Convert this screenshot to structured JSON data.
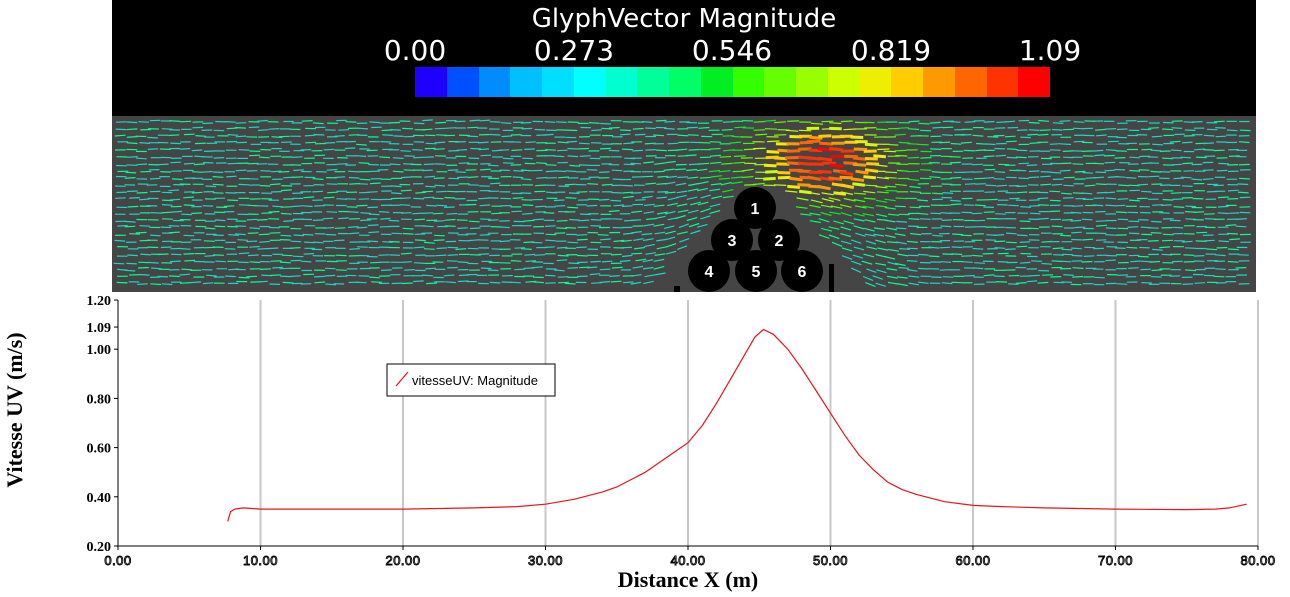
{
  "colorbar": {
    "title": "GlyphVector Magnitude",
    "ticks": [
      "0.00",
      "0.273",
      "0.546",
      "0.819",
      "1.09"
    ],
    "colors": [
      "#1f00ff",
      "#0050ff",
      "#008cff",
      "#00bfff",
      "#00dfff",
      "#00ffff",
      "#00ffd0",
      "#00ff99",
      "#00ff66",
      "#00ee22",
      "#33ff00",
      "#66ff00",
      "#99ff00",
      "#ccff00",
      "#eeee00",
      "#ffcc00",
      "#ff9900",
      "#ff6600",
      "#ff3300",
      "#ff0000"
    ]
  },
  "flow_field": {
    "background_color": "#454545",
    "glyph_base_color": "#17d9c4",
    "glyph_peak_color": "#ff1a00",
    "obstacles": [
      "1",
      "2",
      "3",
      "4",
      "5",
      "6"
    ]
  },
  "chart_data": {
    "type": "line",
    "title": "",
    "xlabel": "Distance X (m)",
    "ylabel": "Vitesse UV (m/s)",
    "xlim": [
      0,
      80
    ],
    "ylim": [
      0.2,
      1.2
    ],
    "x_ticks": [
      "0.00",
      "10.00",
      "20.00",
      "30.00",
      "40.00",
      "50.00",
      "60.00",
      "70.00",
      "80.00"
    ],
    "y_ticks": [
      "0.20",
      "0.40",
      "0.60",
      "0.80",
      "1.00",
      "1.09",
      "1.20"
    ],
    "x_tick_values": [
      0,
      10,
      20,
      30,
      40,
      50,
      60,
      70,
      80
    ],
    "y_tick_values": [
      0.2,
      0.4,
      0.6,
      0.8,
      1.0,
      1.09,
      1.2
    ],
    "grid": true,
    "legend": "upper-left",
    "series": [
      {
        "name": "vitesseUV: Magnitude",
        "color": "#e8141e",
        "x": [
          7.7,
          7.9,
          8.2,
          8.8,
          10,
          15,
          20,
          25,
          28,
          30,
          32,
          34,
          35,
          36,
          37,
          38,
          39,
          40,
          41,
          42,
          43,
          44,
          44.7,
          45.3,
          46,
          47,
          48,
          49,
          50,
          51,
          52,
          53,
          54,
          55,
          56,
          58,
          60,
          62,
          65,
          70,
          75,
          77,
          78,
          79.2
        ],
        "y": [
          0.3,
          0.34,
          0.35,
          0.355,
          0.35,
          0.35,
          0.35,
          0.355,
          0.36,
          0.37,
          0.39,
          0.42,
          0.44,
          0.47,
          0.5,
          0.54,
          0.58,
          0.62,
          0.69,
          0.78,
          0.88,
          0.98,
          1.05,
          1.08,
          1.06,
          1.0,
          0.92,
          0.83,
          0.74,
          0.65,
          0.57,
          0.51,
          0.46,
          0.43,
          0.41,
          0.38,
          0.365,
          0.36,
          0.355,
          0.35,
          0.348,
          0.35,
          0.355,
          0.37
        ]
      }
    ]
  }
}
